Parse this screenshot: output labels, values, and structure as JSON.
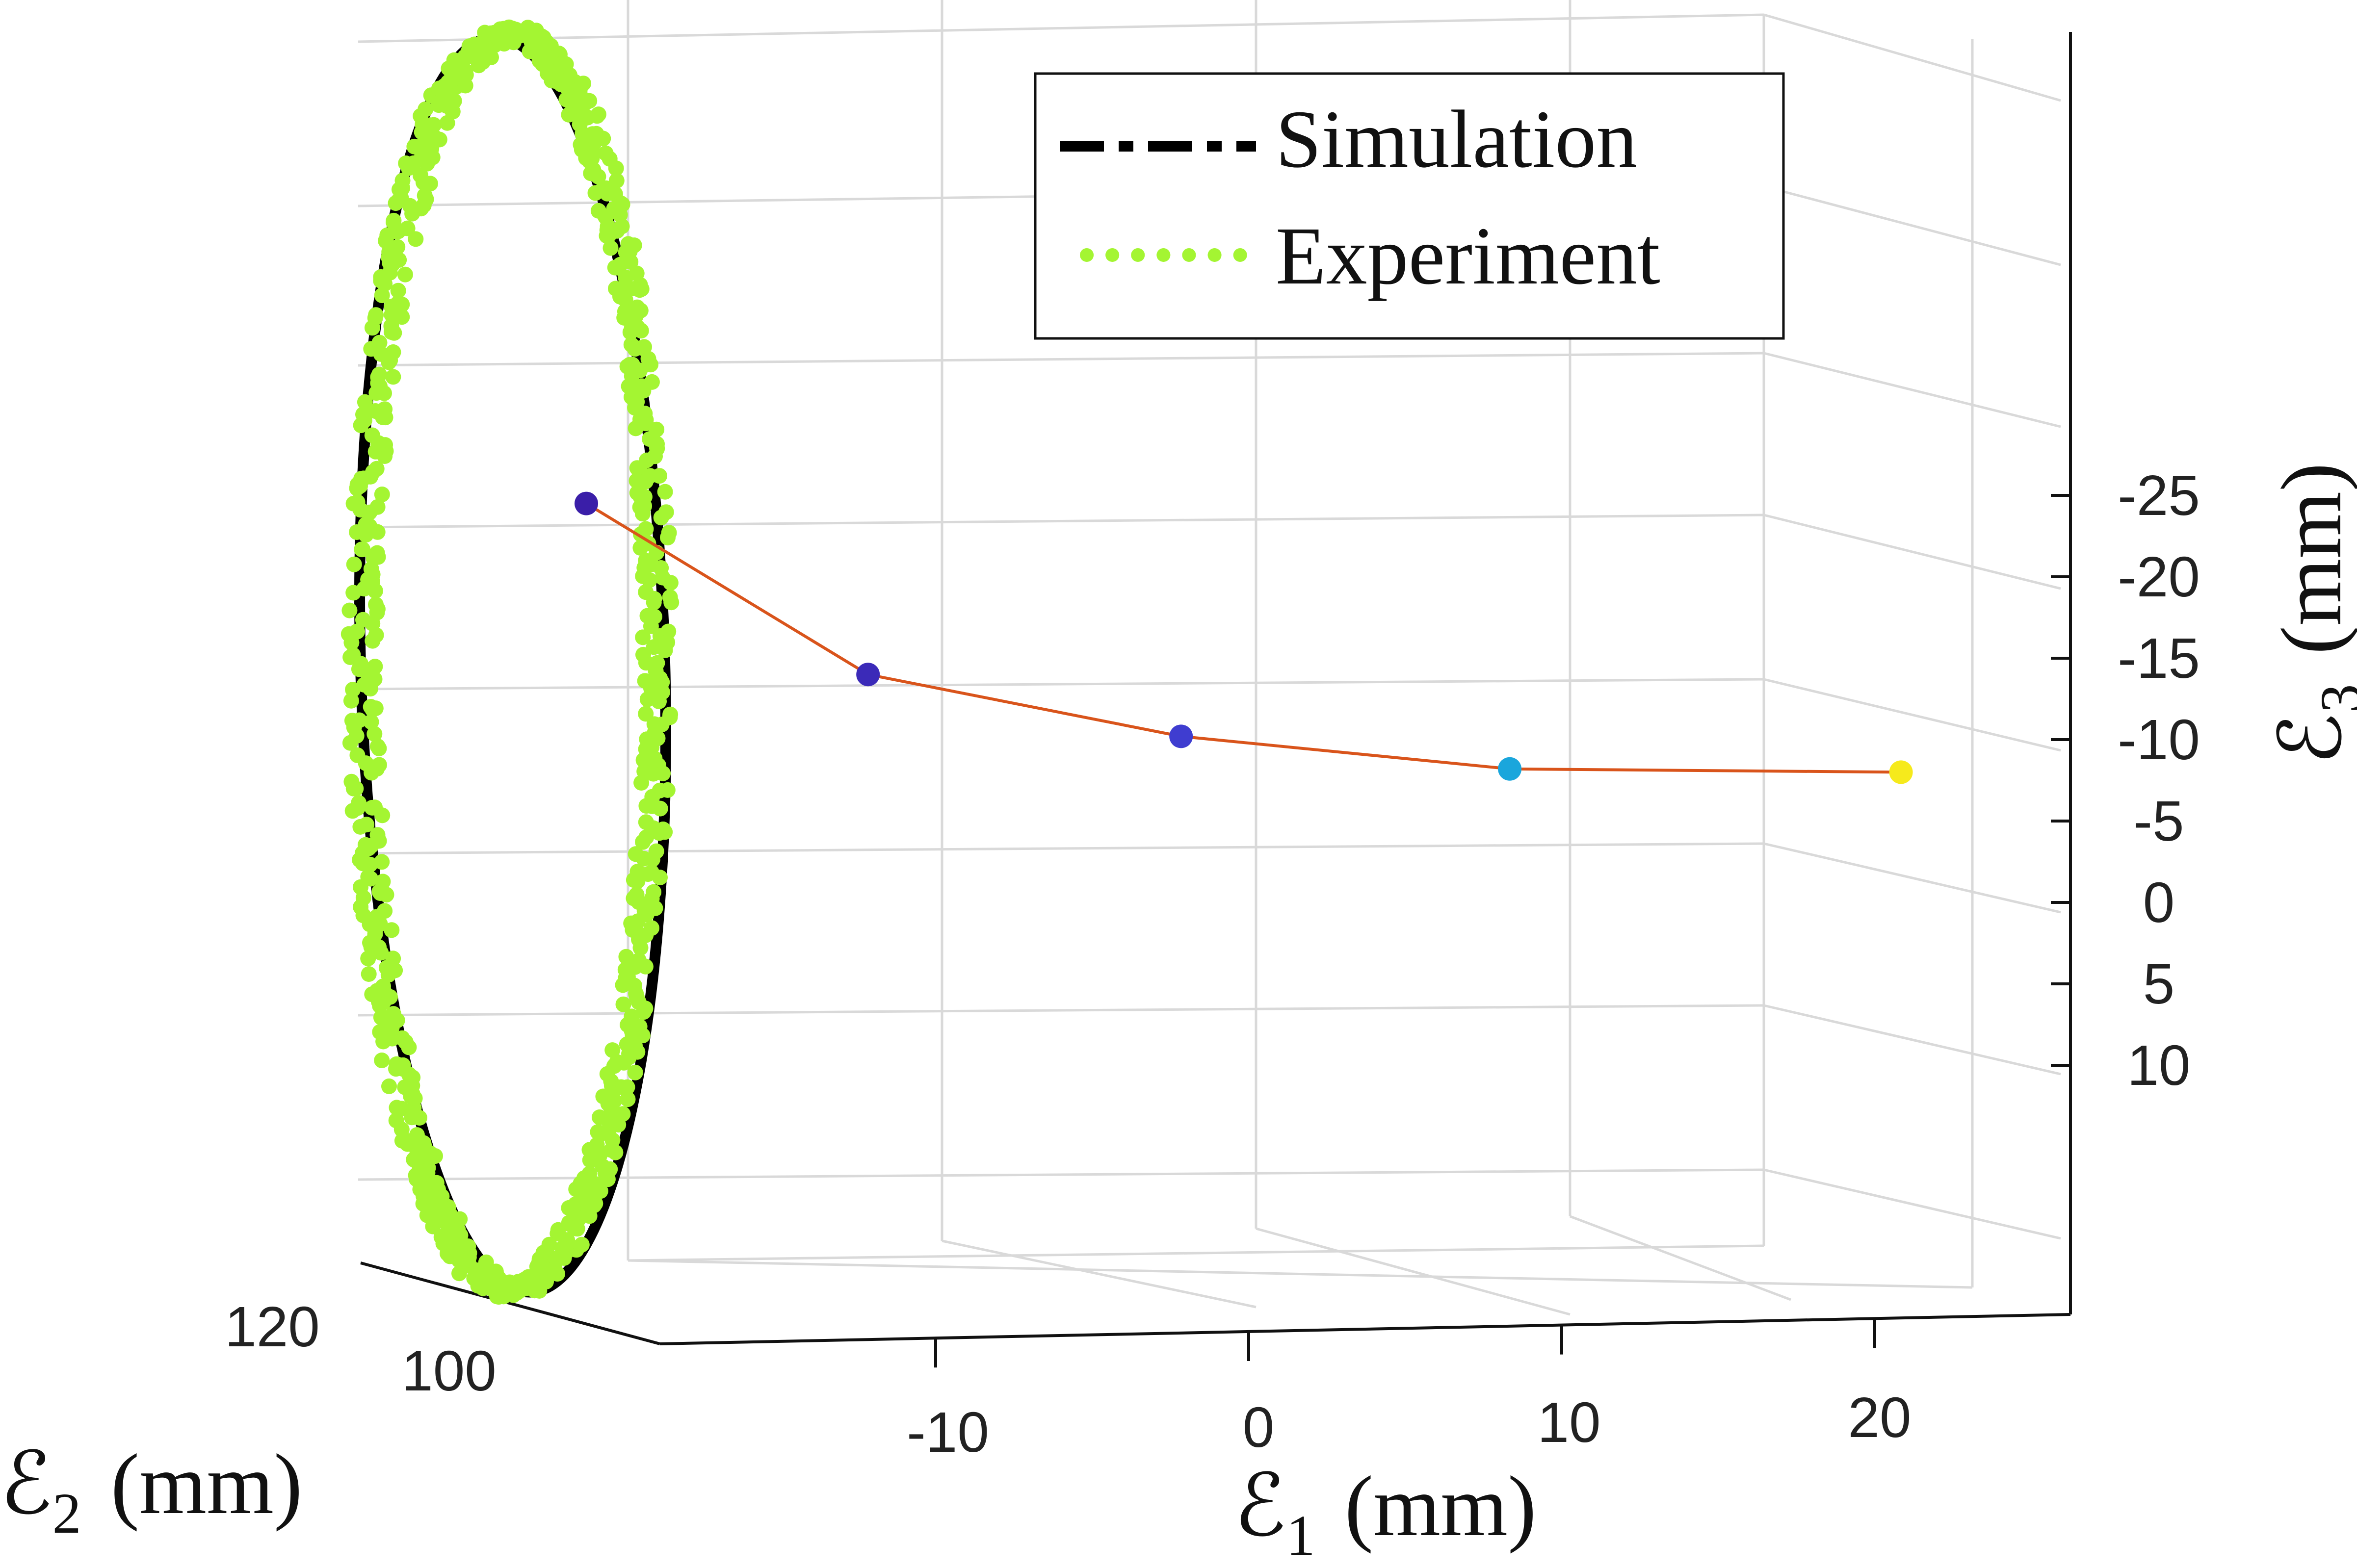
{
  "chart_data": {
    "type": "line",
    "projection": "3d",
    "legend": {
      "position": "top-right",
      "entries": [
        {
          "label": "Simulation",
          "style": "dash-dot",
          "color": "#000000"
        },
        {
          "label": "Experiment",
          "style": "dotted",
          "color": "#a4f532"
        }
      ]
    },
    "axes": {
      "e1": {
        "label": "ℰ",
        "subscript": "1",
        "unit": "(mm)",
        "ticks": [
          "-10",
          "0",
          "10",
          "20"
        ],
        "range": [
          -20,
          25
        ]
      },
      "e2": {
        "label": "ℰ",
        "subscript": "2",
        "unit": "(mm)",
        "ticks": [
          "120",
          "100"
        ],
        "range": [
          90,
          130
        ]
      },
      "e3": {
        "label": "ℰ",
        "subscript": "3",
        "unit": "(mm)",
        "ticks": [
          "-25",
          "-20",
          "-15",
          "-10",
          "-5",
          "0",
          "5",
          "10"
        ],
        "range": [
          12,
          -27
        ],
        "direction": "reversed"
      }
    },
    "grid": true,
    "series": [
      {
        "name": "Simulation",
        "kind": "ellipse",
        "e1": -20,
        "e3_range": [
          -27,
          11
        ],
        "color": "#000000"
      },
      {
        "name": "Experiment",
        "kind": "scatter-ellipse",
        "e1": -20,
        "e3_range": [
          -27,
          11
        ],
        "color": "#a4f532"
      },
      {
        "kind": "polyline",
        "color": "#d9541b",
        "points": [
          {
            "e1": -20,
            "e3": -24.5,
            "color": "#3a1ea8"
          },
          {
            "e1": -11,
            "e3": -14,
            "color": "#3b2ab8"
          },
          {
            "e1": -1,
            "e3": -10.2,
            "color": "#3f3dd0"
          },
          {
            "e1": 9.5,
            "e3": -8.2,
            "color": "#1aa6dc"
          },
          {
            "e1": 22,
            "e3": -8,
            "color": "#f6ea1c"
          }
        ]
      }
    ]
  }
}
